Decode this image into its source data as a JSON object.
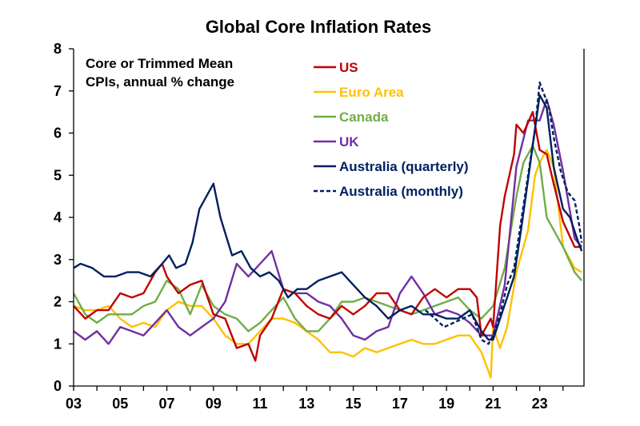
{
  "chart_data": {
    "type": "line",
    "title": "Global Core Inflation Rates",
    "annotation": [
      "Core or Trimmed Mean",
      "CPIs, annual % change"
    ],
    "xlabel": "",
    "ylabel": "",
    "xlim": [
      2003,
      2024.9
    ],
    "ylim": [
      0,
      8
    ],
    "x_ticks": [
      3,
      5,
      7,
      9,
      11,
      13,
      15,
      17,
      19,
      21,
      23
    ],
    "x_tick_labels": [
      "03",
      "05",
      "07",
      "09",
      "11",
      "13",
      "15",
      "17",
      "19",
      "21",
      "23"
    ],
    "y_ticks": [
      0,
      1,
      2,
      3,
      4,
      5,
      6,
      7,
      8
    ],
    "y_tick_labels": [
      "0",
      "1",
      "2",
      "3",
      "4",
      "5",
      "6",
      "7",
      "8"
    ],
    "grid": false,
    "legend_position": "top-center",
    "series": [
      {
        "name": "US",
        "color": "#C00000",
        "dash": false,
        "x": [
          2003,
          2003.5,
          2004,
          2004.5,
          2005,
          2005.5,
          2006,
          2006.5,
          2006.8,
          2007,
          2007.5,
          2008,
          2008.5,
          2009,
          2009.5,
          2010,
          2010.5,
          2010.8,
          2011,
          2011.5,
          2012,
          2012.5,
          2013,
          2013.5,
          2014,
          2014.5,
          2015,
          2015.5,
          2016,
          2016.5,
          2017,
          2017.5,
          2018,
          2018.5,
          2019,
          2019.5,
          2020,
          2020.3,
          2020.5,
          2020.9,
          2021,
          2021.3,
          2021.5,
          2021.9,
          2022,
          2022.3,
          2022.7,
          2023,
          2023.3,
          2023.6,
          2024,
          2024.5,
          2024.8
        ],
        "y": [
          1.9,
          1.6,
          1.8,
          1.8,
          2.2,
          2.1,
          2.2,
          2.7,
          2.9,
          2.6,
          2.2,
          2.4,
          2.5,
          1.7,
          1.6,
          0.9,
          1.0,
          0.6,
          1.2,
          1.6,
          2.3,
          2.2,
          1.9,
          1.7,
          1.6,
          1.9,
          1.7,
          1.9,
          2.2,
          2.2,
          1.8,
          1.7,
          2.1,
          2.3,
          2.1,
          2.3,
          2.3,
          2.1,
          1.2,
          1.6,
          1.4,
          3.8,
          4.5,
          5.5,
          6.2,
          6.0,
          6.5,
          5.6,
          5.5,
          4.8,
          3.9,
          3.3,
          3.3
        ]
      },
      {
        "name": "Euro Area",
        "color": "#FFC000",
        "dash": false,
        "x": [
          2003,
          2003.5,
          2004,
          2004.5,
          2005,
          2005.5,
          2006,
          2006.5,
          2007,
          2007.5,
          2008,
          2008.5,
          2009,
          2009.5,
          2010,
          2010.5,
          2011,
          2011.5,
          2012,
          2012.5,
          2013,
          2013.5,
          2014,
          2014.5,
          2015,
          2015.5,
          2016,
          2016.5,
          2017,
          2017.5,
          2018,
          2018.5,
          2019,
          2019.5,
          2020,
          2020.5,
          2020.9,
          2021,
          2021.3,
          2021.6,
          2022,
          2022.5,
          2022.8,
          2023,
          2023.3,
          2023.6,
          2024,
          2024.5,
          2024.8
        ],
        "y": [
          1.9,
          1.8,
          1.8,
          1.9,
          1.6,
          1.4,
          1.5,
          1.4,
          1.8,
          2.0,
          1.9,
          1.9,
          1.6,
          1.2,
          1.0,
          1.0,
          1.3,
          1.6,
          1.6,
          1.5,
          1.3,
          1.1,
          0.8,
          0.8,
          0.7,
          0.9,
          0.8,
          0.9,
          1.0,
          1.1,
          1.0,
          1.0,
          1.1,
          1.2,
          1.2,
          0.8,
          0.2,
          1.4,
          0.9,
          1.4,
          2.7,
          3.7,
          5.0,
          5.3,
          5.6,
          5.2,
          3.3,
          2.8,
          2.7
        ]
      },
      {
        "name": "Canada",
        "color": "#70AD47",
        "dash": false,
        "x": [
          2003,
          2003.5,
          2004,
          2004.5,
          2005,
          2005.5,
          2006,
          2006.5,
          2007,
          2007.5,
          2008,
          2008.5,
          2009,
          2009.5,
          2010,
          2010.5,
          2011,
          2011.5,
          2012,
          2012.5,
          2013,
          2013.5,
          2014,
          2014.5,
          2015,
          2015.5,
          2016,
          2016.5,
          2017,
          2017.5,
          2018,
          2018.5,
          2019,
          2019.5,
          2020,
          2020.5,
          2021,
          2021.5,
          2022,
          2022.3,
          2022.7,
          2023,
          2023.3,
          2023.6,
          2024,
          2024.5,
          2024.8
        ],
        "y": [
          2.2,
          1.7,
          1.5,
          1.7,
          1.7,
          1.7,
          1.9,
          2.0,
          2.5,
          2.3,
          1.7,
          2.4,
          1.9,
          1.7,
          1.6,
          1.3,
          1.5,
          1.8,
          2.1,
          1.6,
          1.3,
          1.3,
          1.6,
          2.0,
          2.0,
          2.1,
          2.0,
          1.9,
          1.8,
          1.7,
          1.8,
          1.9,
          2.0,
          2.1,
          1.8,
          1.6,
          1.9,
          2.8,
          4.5,
          5.3,
          5.7,
          5.3,
          4.0,
          3.7,
          3.3,
          2.7,
          2.5
        ]
      },
      {
        "name": "UK",
        "color": "#7030A0",
        "dash": false,
        "x": [
          2003,
          2003.5,
          2004,
          2004.5,
          2005,
          2005.5,
          2006,
          2006.5,
          2007,
          2007.5,
          2008,
          2008.5,
          2009,
          2009.5,
          2010,
          2010.5,
          2011,
          2011.5,
          2012,
          2012.5,
          2013,
          2013.5,
          2014,
          2014.5,
          2015,
          2015.5,
          2016,
          2016.5,
          2017,
          2017.5,
          2018,
          2018.5,
          2019,
          2019.5,
          2020,
          2020.5,
          2021,
          2021.5,
          2022,
          2022.5,
          2022.8,
          2023,
          2023.3,
          2023.6,
          2024,
          2024.5,
          2024.8
        ],
        "y": [
          1.3,
          1.1,
          1.3,
          1.0,
          1.4,
          1.3,
          1.2,
          1.5,
          1.8,
          1.4,
          1.2,
          1.4,
          1.6,
          2.0,
          2.9,
          2.6,
          2.9,
          3.2,
          2.3,
          2.2,
          2.2,
          2.0,
          1.9,
          1.6,
          1.2,
          1.1,
          1.3,
          1.4,
          2.2,
          2.6,
          2.2,
          1.7,
          1.8,
          1.7,
          1.5,
          1.2,
          1.2,
          2.4,
          5.2,
          6.3,
          6.3,
          6.3,
          6.8,
          6.2,
          5.1,
          3.5,
          3.3
        ]
      },
      {
        "name": "Australia (quarterly)",
        "color": "#002060",
        "dash": false,
        "x": [
          2003,
          2003.3,
          2003.8,
          2004.3,
          2004.8,
          2005.3,
          2005.8,
          2006.3,
          2006.8,
          2007.1,
          2007.4,
          2007.8,
          2008.1,
          2008.4,
          2008.7,
          2009,
          2009.3,
          2009.8,
          2010.2,
          2010.6,
          2011,
          2011.4,
          2011.8,
          2012.2,
          2012.6,
          2013,
          2013.5,
          2014,
          2014.5,
          2015,
          2015.5,
          2016,
          2016.5,
          2017,
          2017.5,
          2018,
          2018.5,
          2019,
          2019.5,
          2020,
          2020.5,
          2020.8,
          2021,
          2021.3,
          2021.6,
          2021.9,
          2022.2,
          2022.5,
          2022.8,
          2023,
          2023.3,
          2023.6,
          2024,
          2024.3,
          2024.6,
          2024.8
        ],
        "y": [
          2.8,
          2.9,
          2.8,
          2.6,
          2.6,
          2.7,
          2.7,
          2.6,
          2.9,
          3.1,
          2.8,
          2.9,
          3.4,
          4.2,
          4.5,
          4.8,
          4.0,
          3.1,
          3.2,
          2.8,
          2.6,
          2.7,
          2.5,
          2.1,
          2.3,
          2.3,
          2.5,
          2.6,
          2.7,
          2.4,
          2.1,
          1.9,
          1.6,
          1.8,
          1.9,
          1.7,
          1.7,
          1.6,
          1.6,
          1.8,
          1.3,
          1.1,
          1.1,
          1.6,
          2.1,
          2.6,
          3.7,
          4.9,
          6.1,
          6.9,
          6.6,
          5.2,
          4.2,
          4.0,
          3.5,
          3.2
        ]
      },
      {
        "name": "Australia (monthly)",
        "color": "#002060",
        "dash": true,
        "x": [
          2018.1,
          2018.5,
          2018.9,
          2019.3,
          2019.7,
          2020.1,
          2020.5,
          2020.8,
          2021,
          2021.3,
          2021.6,
          2021.9,
          2022.2,
          2022.5,
          2022.8,
          2023,
          2023.2,
          2023.4,
          2023.6,
          2023.9,
          2024.2,
          2024.5,
          2024.7,
          2024.8
        ],
        "y": [
          1.8,
          1.6,
          1.4,
          1.5,
          1.6,
          1.7,
          1.1,
          1.0,
          1.2,
          1.7,
          2.4,
          2.8,
          3.9,
          5.0,
          6.1,
          7.2,
          6.9,
          6.6,
          5.9,
          5.1,
          4.6,
          4.4,
          3.8,
          3.4
        ]
      }
    ]
  }
}
